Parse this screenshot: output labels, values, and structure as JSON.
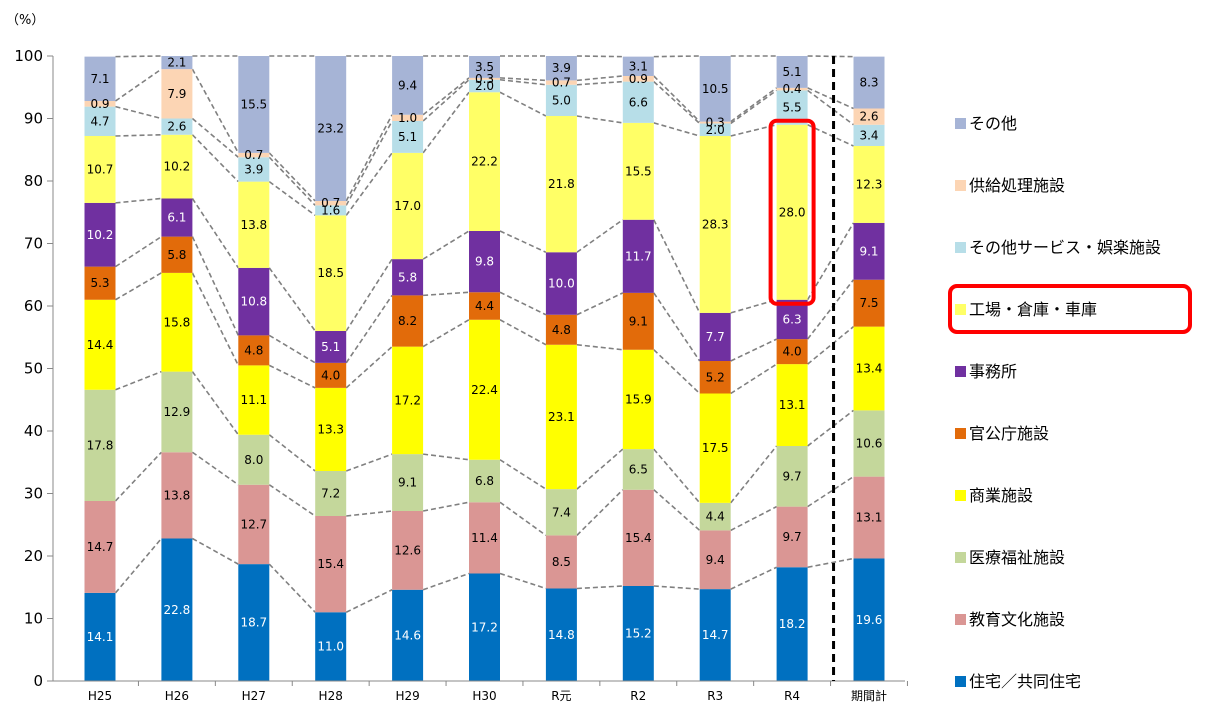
{
  "chart_data": {
    "type": "bar",
    "stacked": true,
    "unit_label": "（%）",
    "ylim": [
      0,
      100
    ],
    "y_ticks": [
      0,
      10,
      20,
      30,
      40,
      50,
      60,
      70,
      80,
      90,
      100
    ],
    "categories": [
      "H25",
      "H26",
      "H27",
      "H28",
      "H29",
      "H30",
      "R元",
      "R2",
      "R3",
      "R4",
      "期間計"
    ],
    "series": [
      {
        "name": "住宅／共同住宅",
        "color": "#0070C0",
        "label_color": "#ffffff",
        "values": [
          14.1,
          22.8,
          18.7,
          11.0,
          14.6,
          17.2,
          14.8,
          15.2,
          14.7,
          18.2,
          19.6
        ]
      },
      {
        "name": "教育文化施設",
        "color": "#DA9694",
        "label_color": "#000000",
        "values": [
          14.7,
          13.8,
          12.7,
          15.4,
          12.6,
          11.4,
          8.5,
          15.4,
          9.4,
          9.7,
          13.1
        ]
      },
      {
        "name": "医療福祉施設",
        "color": "#C4D79B",
        "label_color": "#000000",
        "values": [
          17.8,
          12.9,
          8.0,
          7.2,
          9.1,
          6.8,
          7.4,
          6.5,
          4.4,
          9.7,
          10.6
        ]
      },
      {
        "name": "商業施設",
        "color": "#FFFF00",
        "label_color": "#000000",
        "values": [
          14.4,
          15.8,
          11.1,
          13.3,
          17.2,
          22.4,
          23.1,
          15.9,
          17.5,
          13.1,
          13.4
        ]
      },
      {
        "name": "官公庁施設",
        "color": "#E26B0A",
        "label_color": "#000000",
        "values": [
          5.3,
          5.8,
          4.8,
          4.0,
          8.2,
          4.4,
          4.8,
          9.1,
          5.2,
          4.0,
          7.5
        ]
      },
      {
        "name": "事務所",
        "color": "#7030A0",
        "label_color": "#ffffff",
        "values": [
          10.2,
          6.1,
          10.8,
          5.1,
          5.8,
          9.8,
          10.0,
          11.7,
          7.7,
          6.3,
          9.1
        ]
      },
      {
        "name": "工場・倉庫・車庫",
        "color": "#FFFF66",
        "label_color": "#000000",
        "values": [
          10.7,
          10.2,
          13.8,
          18.5,
          17.0,
          22.2,
          21.8,
          15.5,
          28.3,
          28.0,
          12.3
        ]
      },
      {
        "name": "その他サービス・娯楽施設",
        "color": "#B7DEE8",
        "label_color": "#000000",
        "values": [
          4.7,
          2.6,
          3.9,
          1.6,
          5.1,
          2.0,
          5.0,
          6.6,
          2.0,
          5.5,
          3.4
        ]
      },
      {
        "name": "供給処理施設",
        "color": "#FCD5B4",
        "label_color": "#000000",
        "values": [
          0.9,
          7.9,
          0.7,
          0.7,
          1.0,
          0.3,
          0.7,
          0.9,
          0.3,
          0.4,
          2.6
        ]
      },
      {
        "name": "その他",
        "color": "#A6B4D6",
        "label_color": "#000000",
        "values": [
          7.1,
          2.1,
          15.5,
          23.2,
          9.4,
          3.5,
          3.9,
          3.1,
          10.5,
          5.1,
          8.3
        ]
      }
    ],
    "legend_order": [
      "その他",
      "供給処理施設",
      "その他サービス・娯楽施設",
      "工場・倉庫・車庫",
      "事務所",
      "官公庁施設",
      "商業施設",
      "医療福祉施設",
      "教育文化施設",
      "住宅／共同住宅"
    ],
    "legend_position": "right",
    "highlight": {
      "category": "R4",
      "series": "工場・倉庫・車庫",
      "color": "#FF0000"
    },
    "dashed_separator_before": "期間計",
    "grid": false
  }
}
